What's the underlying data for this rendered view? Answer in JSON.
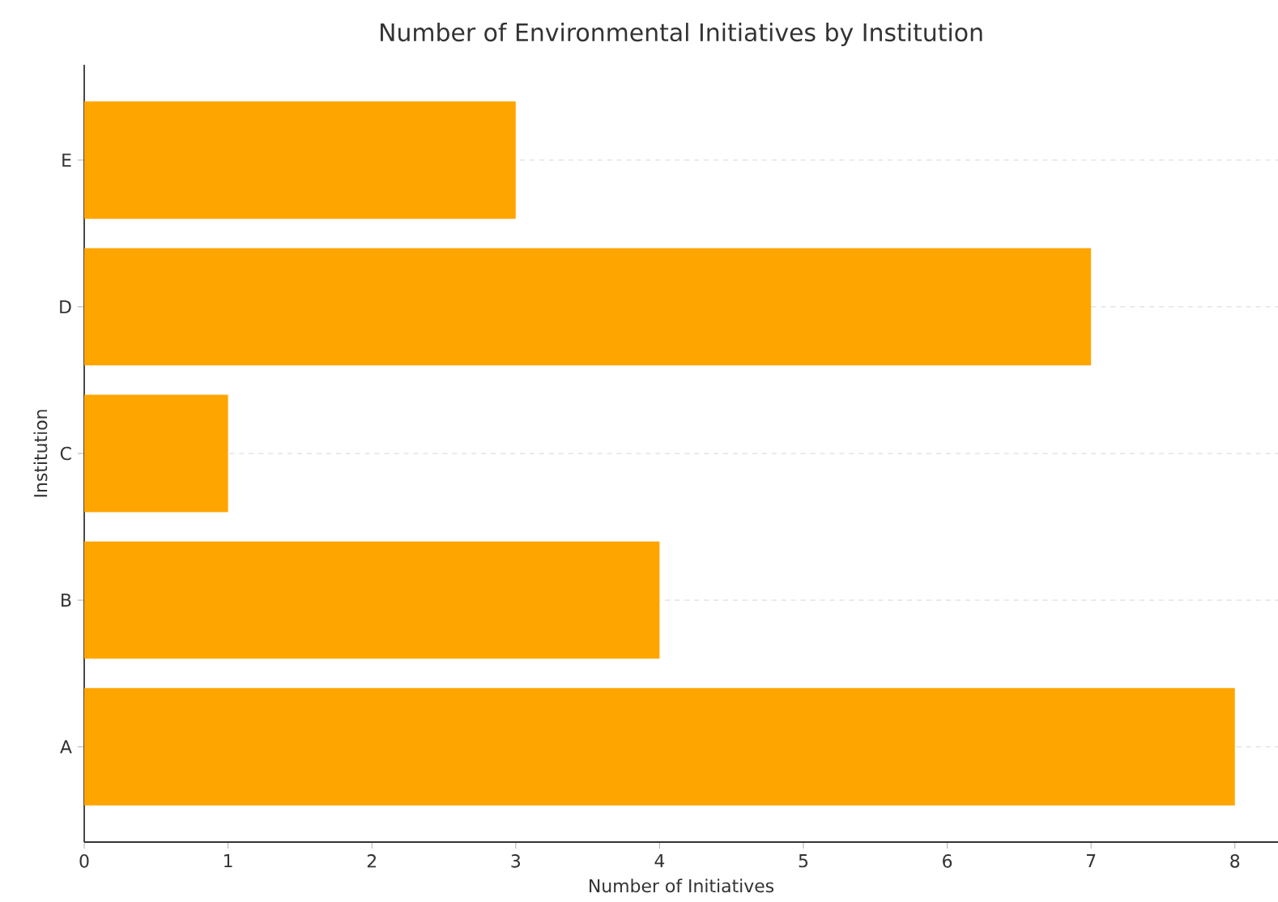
{
  "chart_data": {
    "type": "bar",
    "orientation": "horizontal",
    "title": "Number of Environmental Initiatives by Institution",
    "xlabel": "Number of Initiatives",
    "ylabel": "Institution",
    "categories": [
      "E",
      "D",
      "C",
      "B",
      "A"
    ],
    "values": [
      3,
      7,
      1,
      4,
      8
    ],
    "color": "#ffa500",
    "xlim": [
      0,
      8.3
    ],
    "xticks": [
      0,
      1,
      2,
      3,
      4,
      5,
      6,
      7,
      8
    ],
    "grid": "y"
  }
}
